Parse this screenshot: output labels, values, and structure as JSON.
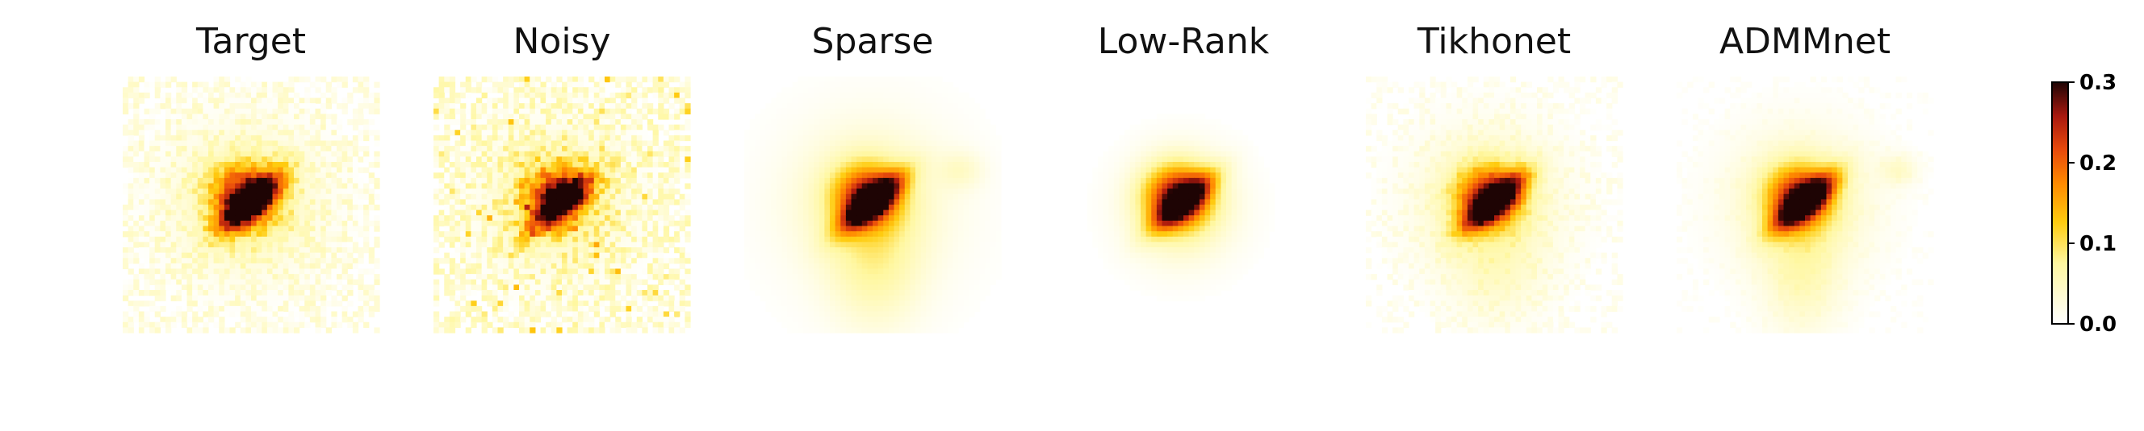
{
  "chart_data": {
    "type": "heatmap",
    "panels": [
      {
        "title": "Target"
      },
      {
        "title": "Noisy"
      },
      {
        "title": "Sparse"
      },
      {
        "title": "Low-Rank"
      },
      {
        "title": "Tikhonet"
      },
      {
        "title": "ADMMnet"
      }
    ],
    "colormap": "afmhot_r",
    "colorbar": {
      "vmin": 0.0,
      "vmax": 0.3,
      "ticks": [
        "0.0",
        "0.1",
        "0.2",
        "0.3"
      ]
    },
    "axes_visible": false
  }
}
